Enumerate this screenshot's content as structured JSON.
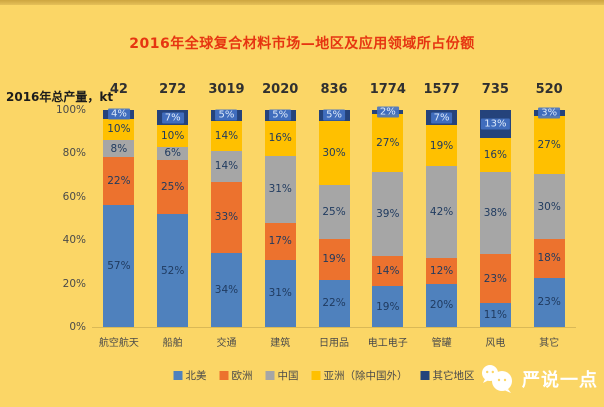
{
  "title": "2016年全球复合材料市场—地区及应用领域所占份额",
  "y_axis_title": "2016年总产量，kt",
  "watermark_text": "严说一点",
  "colors": {
    "background": "#FBD666",
    "title": "#E63511",
    "north_america": "#4F81BD",
    "europe": "#EC722E",
    "china": "#A6A6A6",
    "asia_ex_china": "#FFC000",
    "other_regions": "#25437B"
  },
  "chart_data": {
    "type": "bar",
    "stacked": true,
    "percent_axis": true,
    "title": "2016年全球复合材料市场—地区及应用领域所占份额",
    "ylabel": "2016年总产量，kt",
    "ylim": [
      0,
      100
    ],
    "y_ticks": [
      "100%",
      "80%",
      "60%",
      "40%",
      "20%",
      "0%"
    ],
    "categories": [
      "航空航天",
      "船舶",
      "交通",
      "建筑",
      "日用品",
      "电工电子",
      "管罐",
      "风电",
      "其它"
    ],
    "totals_kt": [
      "42",
      "272",
      "3019",
      "2020",
      "836",
      "1774",
      "1577",
      "735",
      "520"
    ],
    "series": [
      {
        "name": "北美",
        "color": "#4F81BD",
        "values": [
          57,
          52,
          34,
          31,
          22,
          19,
          20,
          11,
          23
        ]
      },
      {
        "name": "欧洲",
        "color": "#EC722E",
        "values": [
          22,
          25,
          33,
          17,
          19,
          14,
          12,
          23,
          18
        ]
      },
      {
        "name": "中国",
        "color": "#A6A6A6",
        "values": [
          8,
          6,
          14,
          31,
          25,
          39,
          42,
          38,
          30
        ]
      },
      {
        "name": "亚洲（除中国外）",
        "color": "#FFC000",
        "values": [
          10,
          10,
          14,
          16,
          30,
          27,
          19,
          16,
          27
        ]
      },
      {
        "name": "其它地区",
        "color": "#25437B",
        "values": [
          4,
          7,
          5,
          5,
          5,
          2,
          7,
          13,
          3
        ]
      }
    ],
    "legend_position": "bottom"
  }
}
